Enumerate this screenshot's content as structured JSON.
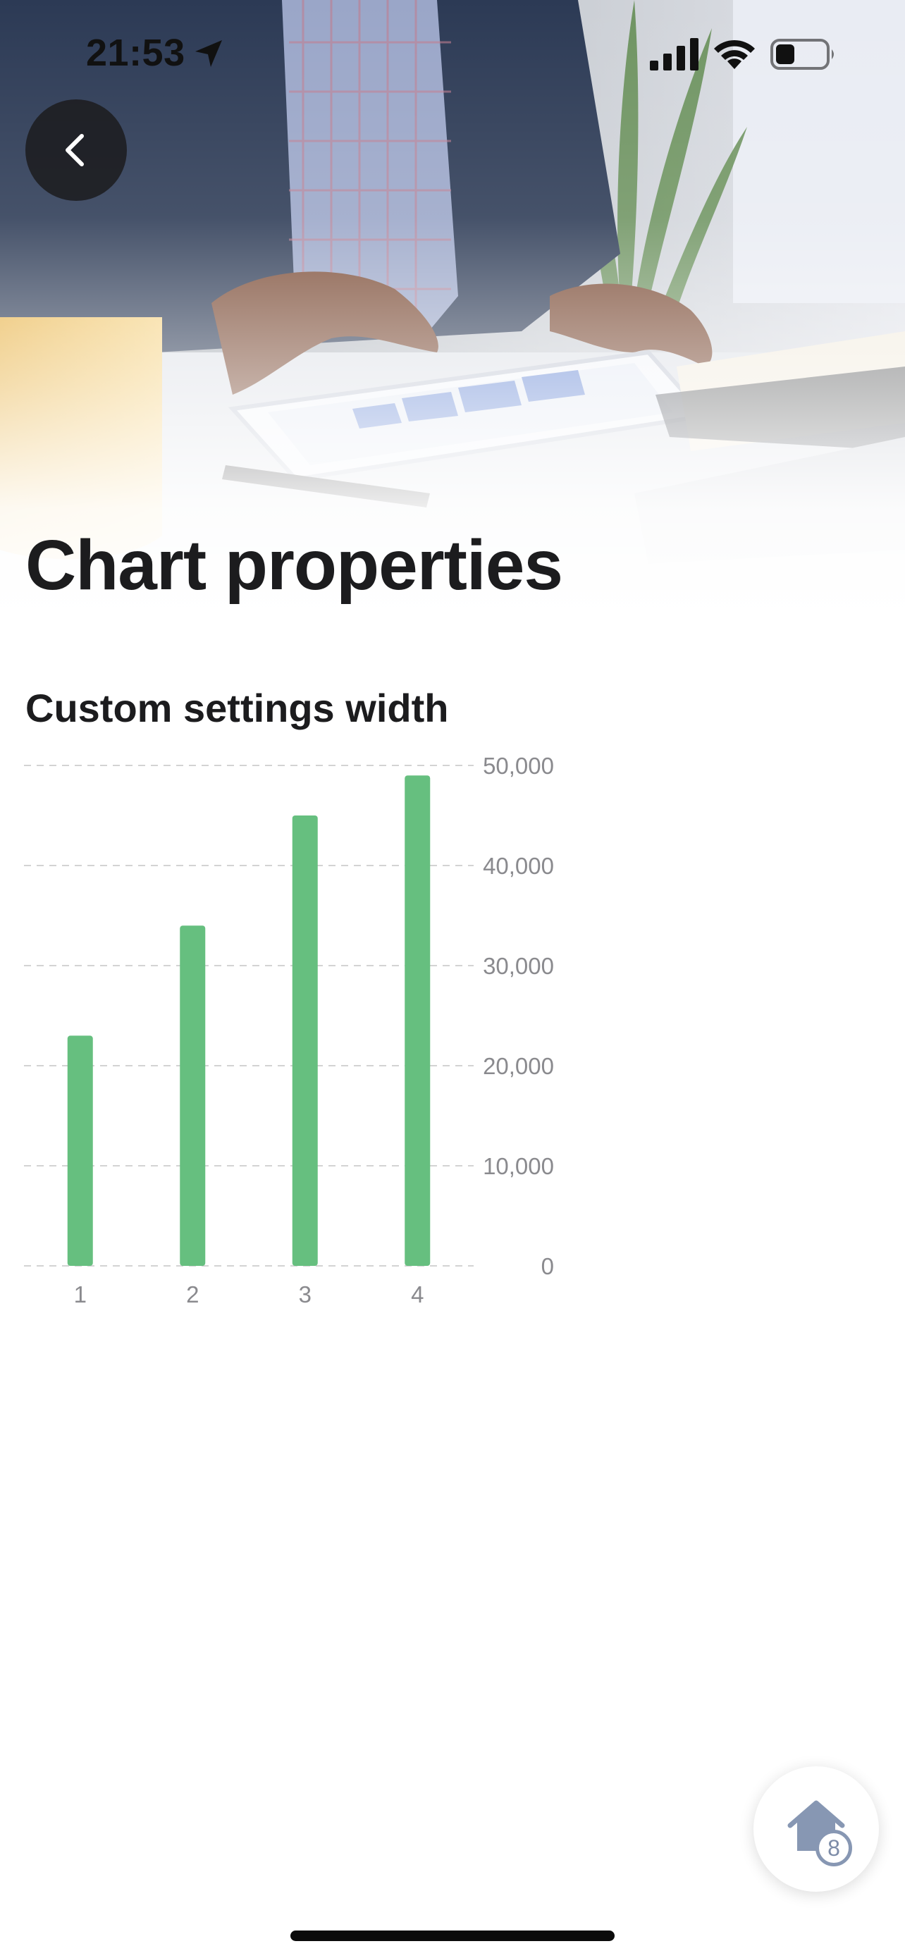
{
  "status_bar": {
    "time": "21:53",
    "icons": [
      "location-arrow-icon",
      "cellular-signal-icon",
      "wifi-icon",
      "battery-icon"
    ]
  },
  "header": {
    "back_icon": "chevron-left-icon",
    "title": "Chart properties"
  },
  "fab": {
    "icon": "home-icon",
    "badge": "8"
  },
  "colors": {
    "bar": "#66bf7f",
    "grid": "#d3d3d3",
    "tick_text": "#8a8a8e",
    "title_text": "#1c1c1e"
  },
  "chart_data": {
    "type": "bar",
    "title": "Custom settings width",
    "categories": [
      "1",
      "2",
      "3",
      "4"
    ],
    "values": [
      23000,
      34000,
      45000,
      49000
    ],
    "y_ticks": [
      "0",
      "10,000",
      "20,000",
      "30,000",
      "40,000",
      "50,000"
    ],
    "ylim": [
      0,
      50000
    ],
    "y_axis_position": "right",
    "grid": true,
    "grid_style": "dashed",
    "legend": "none"
  }
}
